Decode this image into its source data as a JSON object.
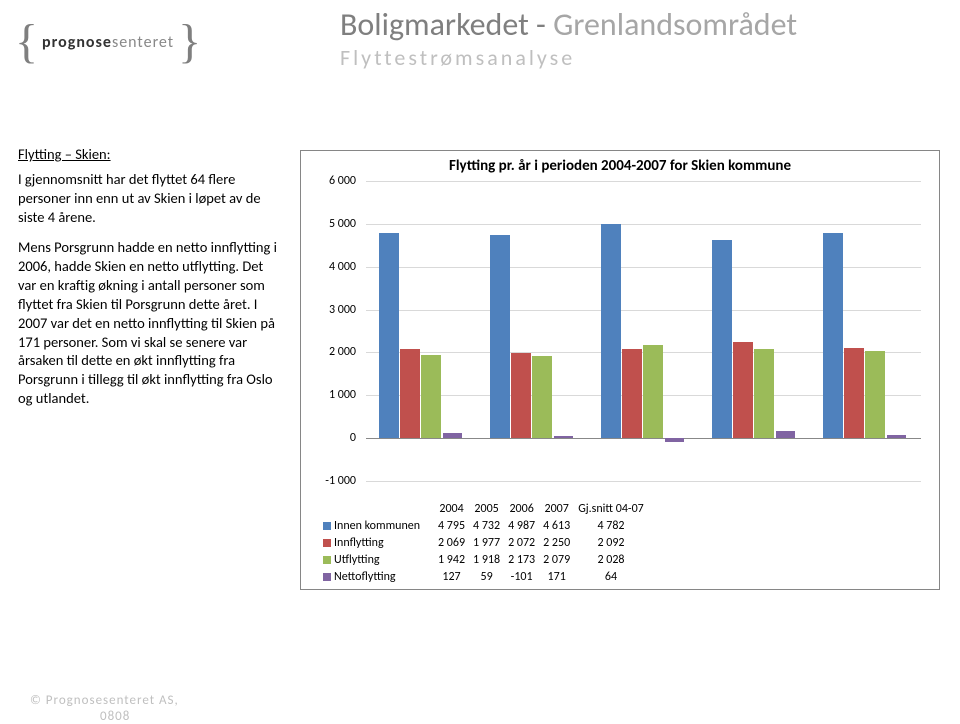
{
  "header": {
    "title_left": "Boligmarkedet",
    "title_sep": " - ",
    "title_right": "Grenlandsområdet",
    "subtitle": "Flyttestrømsanalyse"
  },
  "logo": {
    "bold": "prognose",
    "light": "senteret"
  },
  "body": {
    "label": "Flytting – Skien:",
    "p1": "I gjennomsnitt har det flyttet 64 flere personer inn enn ut av Skien i løpet av de siste 4 årene.",
    "p2": "Mens Porsgrunn hadde en netto innflytting i 2006, hadde Skien en netto utflytting. Det var en kraftig økning i antall personer som flyttet fra Skien til Porsgrunn dette året. I 2007 var det en netto innflytting til Skien på 171 personer. Som vi skal se senere var årsaken til dette en økt innflytting fra Porsgrunn i tillegg til økt innflytting fra Oslo og utlandet."
  },
  "chart": {
    "title": "Flytting pr. år i perioden 2004-2007 for Skien kommune",
    "ymin": -1000,
    "ymax": 6000,
    "ytick_step": 1000,
    "yticks": [
      "-1 000",
      "0",
      "1 000",
      "2 000",
      "3 000",
      "4 000",
      "5 000",
      "6 000"
    ],
    "categories": [
      "2004",
      "2005",
      "2006",
      "2007",
      "Gj.snitt 04-07"
    ],
    "series": [
      {
        "name": "Innen kommunen",
        "color": "#4f81bd",
        "values": [
          4795,
          4732,
          4987,
          4613,
          4782
        ]
      },
      {
        "name": "Innflytting",
        "color": "#c0504d",
        "values": [
          2069,
          1977,
          2072,
          2250,
          2092
        ]
      },
      {
        "name": "Utflytting",
        "color": "#9bbb59",
        "values": [
          1942,
          1918,
          2173,
          2079,
          2028
        ]
      },
      {
        "name": "Nettoflytting",
        "color": "#8064a2",
        "values": [
          127,
          59,
          -101,
          171,
          64
        ]
      }
    ],
    "grid_color": "#d9d9d9"
  },
  "footer": {
    "line1": "© Prognosesenteret AS,",
    "line2": "0808"
  }
}
